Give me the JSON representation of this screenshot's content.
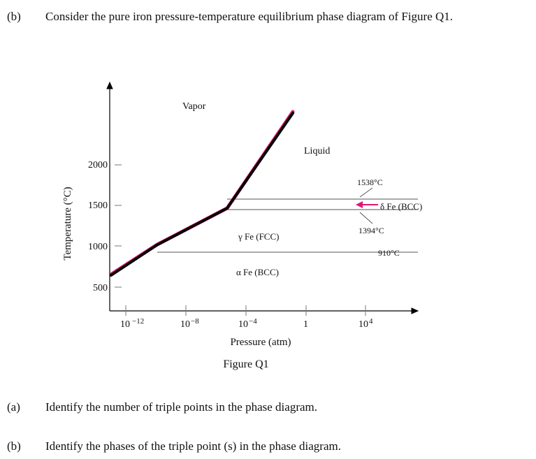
{
  "question_b": {
    "label": "(b)",
    "text": "Consider the pure iron pressure-temperature equilibrium phase diagram of Figure Q1."
  },
  "figure": {
    "y_axis_label": "Temperature (°C)",
    "x_axis_label": "Pressure (atm)",
    "caption": "Figure Q1",
    "y_ticks": [
      "2000",
      "1500",
      "1000",
      "500"
    ],
    "x_ticks": [
      {
        "base": "10",
        "exp": "−12"
      },
      {
        "base": "10",
        "exp": "−8"
      },
      {
        "base": "10",
        "exp": "−4"
      },
      {
        "base": "1",
        "exp": ""
      },
      {
        "base": "10",
        "exp": "4"
      }
    ],
    "regions": {
      "vapor": "Vapor",
      "liquid": "Liquid",
      "gamma": "γ Fe (FCC)",
      "alpha": "α Fe (BCC)",
      "delta": "δ Fe (BCC)"
    },
    "annotations": {
      "t1538": "1538°C",
      "t1394": "1394°C",
      "t910": "910°C"
    },
    "highlight_color": "#e0157a",
    "line_color": "#000000"
  },
  "question_a2": {
    "label": "(a)",
    "text": "Identify the number of triple points in the phase diagram."
  },
  "question_b2": {
    "label": "(b)",
    "text": "Identify the phases of the triple point (s) in the phase diagram."
  }
}
